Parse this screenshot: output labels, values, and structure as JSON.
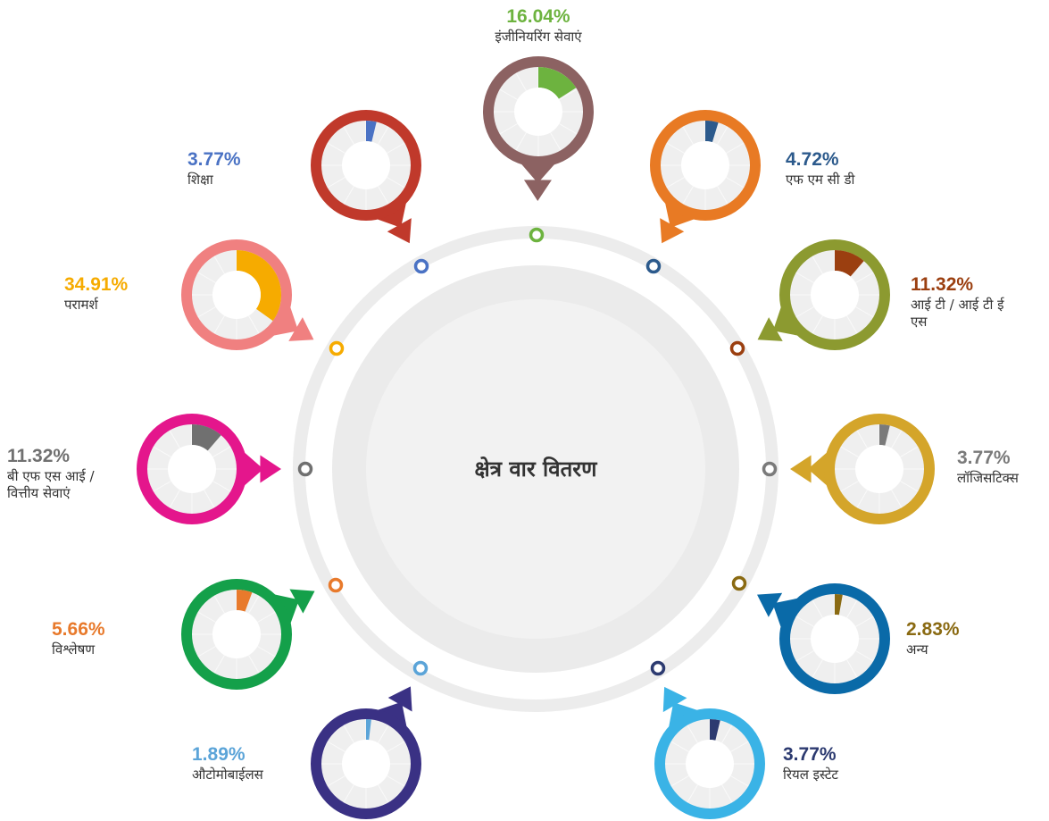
{
  "chart_data": {
    "type": "gauges",
    "title": "क्षेत्र वार वितरण",
    "categories": [
      "इंजीनियरिंग सेवाएं",
      "एफ एम सी डी",
      "आई टी / आई टी ई एस",
      "लॉजिसटिक्स",
      "अन्य",
      "रियल इस्टेट",
      "औटोमोबाईलस",
      "विश्लेषण",
      "बी एफ एस आई / वित्तीय सेवाएं",
      "परामर्श",
      "शिक्षा"
    ],
    "values": [
      16.04,
      4.72,
      11.32,
      3.77,
      2.83,
      3.77,
      1.89,
      5.66,
      11.32,
      34.91,
      3.77
    ],
    "value_labels": [
      "16.04%",
      "4.72%",
      "11.32%",
      "3.77%",
      "2.83%",
      "3.77%",
      "1.89%",
      "5.66%",
      "11.32%",
      "34.91%",
      "3.77%"
    ],
    "colors": [
      "#6db33f",
      "#2c5a8c",
      "#9b3f10",
      "#7a7a7a",
      "#8a6a12",
      "#2c3a70",
      "#5ba4d8",
      "#e87a2c",
      "#707070",
      "#f6ab00",
      "#4a72c4"
    ],
    "ring_colors": [
      "#8c6262",
      "#e87a24",
      "#8c9a30",
      "#d4a52a",
      "#0a6aa8",
      "#3ab3e6",
      "#3a3184",
      "#14a04a",
      "#e4168c",
      "#f08080",
      "#c0392b"
    ]
  }
}
